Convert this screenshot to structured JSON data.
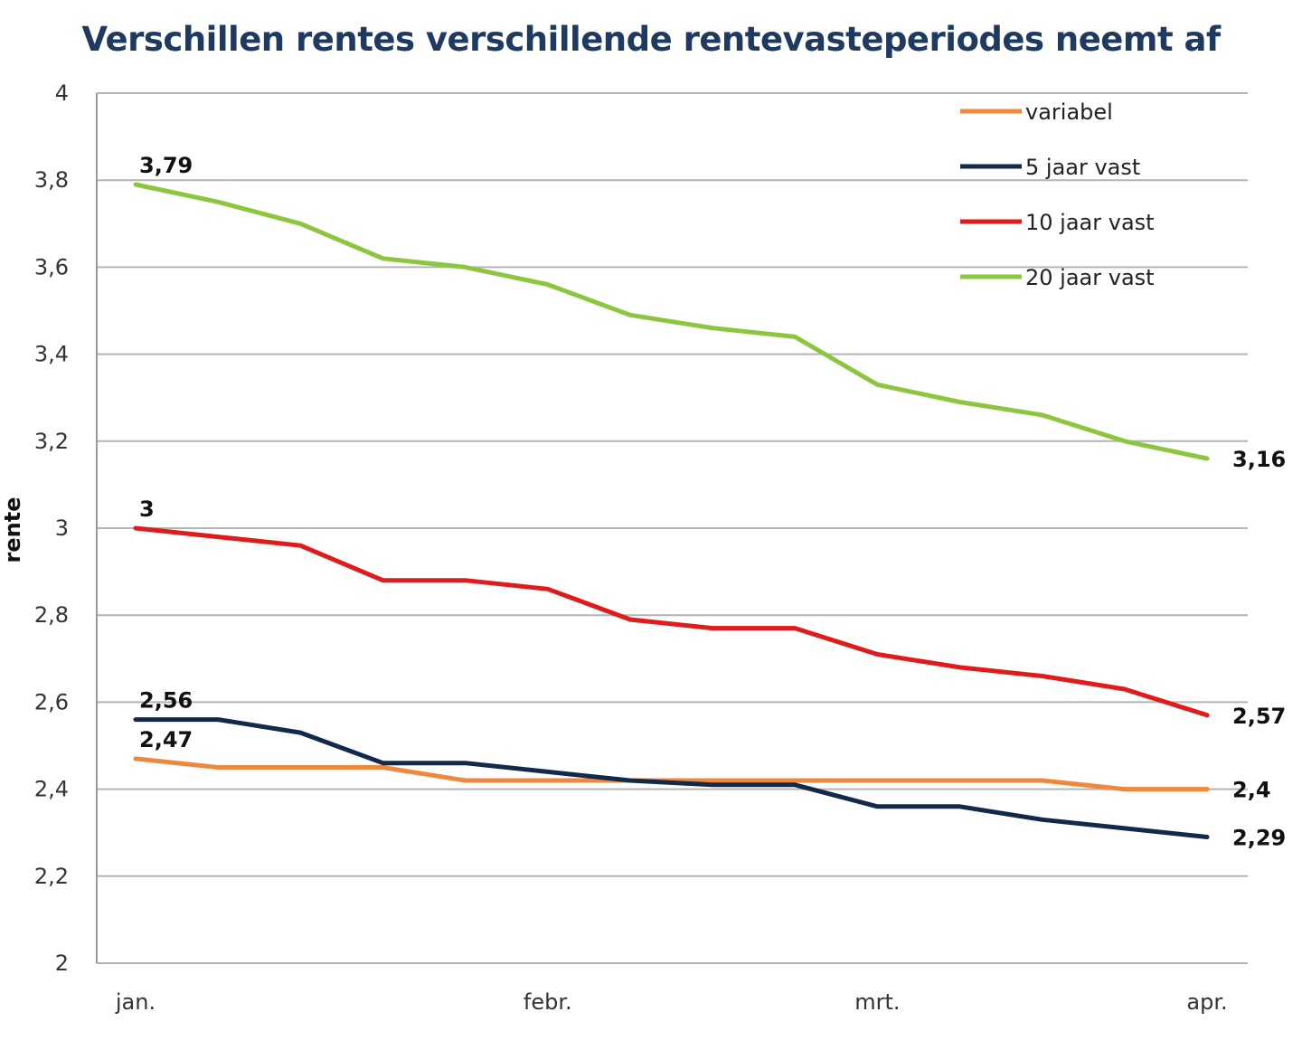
{
  "chart_data": {
    "type": "line",
    "title": "Verschillen rentes verschillende rentevasteperiodes neemt af",
    "xlabel": "",
    "ylabel": "rente",
    "ylim": [
      2,
      4
    ],
    "yticks": [
      {
        "value": 2,
        "label": "2"
      },
      {
        "value": 2.2,
        "label": "2,2"
      },
      {
        "value": 2.4,
        "label": "2,4"
      },
      {
        "value": 2.6,
        "label": "2,6"
      },
      {
        "value": 2.8,
        "label": "2,8"
      },
      {
        "value": 3,
        "label": "3"
      },
      {
        "value": 3.2,
        "label": "3,2"
      },
      {
        "value": 3.4,
        "label": "3,4"
      },
      {
        "value": 3.6,
        "label": "3,6"
      },
      {
        "value": 3.8,
        "label": "3,8"
      },
      {
        "value": 4,
        "label": "4"
      }
    ],
    "xticks": [
      {
        "index": 0,
        "label": "jan."
      },
      {
        "index": 5,
        "label": "febr."
      },
      {
        "index": 9,
        "label": "mrt."
      },
      {
        "index": 13,
        "label": "apr."
      }
    ],
    "x_count": 14,
    "grid": "horizontal",
    "legend_position": "top-right",
    "series": [
      {
        "name": "variabel",
        "color": "#f0883c",
        "values": [
          2.47,
          2.45,
          2.45,
          2.45,
          2.42,
          2.42,
          2.42,
          2.42,
          2.42,
          2.42,
          2.42,
          2.42,
          2.4,
          2.4
        ],
        "labels": [
          {
            "index": 0,
            "text": "2,47",
            "pos": "above"
          },
          {
            "index": 13,
            "text": "2,4",
            "pos": "right"
          }
        ]
      },
      {
        "name": "5 jaar vast",
        "color": "#13294b",
        "values": [
          2.56,
          2.56,
          2.53,
          2.46,
          2.46,
          2.44,
          2.42,
          2.41,
          2.41,
          2.36,
          2.36,
          2.33,
          2.31,
          2.29
        ],
        "labels": [
          {
            "index": 0,
            "text": "2,56",
            "pos": "above"
          },
          {
            "index": 13,
            "text": "2,29",
            "pos": "right"
          }
        ]
      },
      {
        "name": "10 jaar vast",
        "color": "#e01b1b",
        "values": [
          3.0,
          2.98,
          2.96,
          2.88,
          2.88,
          2.86,
          2.79,
          2.77,
          2.77,
          2.71,
          2.68,
          2.66,
          2.63,
          2.57
        ],
        "labels": [
          {
            "index": 0,
            "text": "3",
            "pos": "above"
          },
          {
            "index": 13,
            "text": "2,57",
            "pos": "right"
          }
        ]
      },
      {
        "name": "20 jaar vast",
        "color": "#8cc63f",
        "values": [
          3.79,
          3.75,
          3.7,
          3.62,
          3.6,
          3.56,
          3.49,
          3.46,
          3.44,
          3.33,
          3.29,
          3.26,
          3.2,
          3.16
        ],
        "labels": [
          {
            "index": 0,
            "text": "3,79",
            "pos": "above"
          },
          {
            "index": 13,
            "text": "3,16",
            "pos": "right"
          }
        ]
      }
    ]
  }
}
